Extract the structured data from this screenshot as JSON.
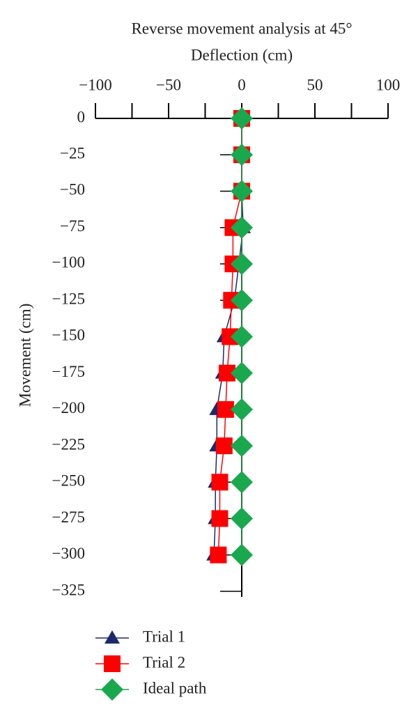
{
  "chart_data": {
    "type": "line",
    "title": "Reverse movement analysis at 45°",
    "x_label": "Deflection (cm)",
    "y_label": "Movement (cm)",
    "xlim": [
      -100,
      100
    ],
    "xticks": [
      {
        "value": -100,
        "label": "−100"
      },
      {
        "value": -50,
        "label": "−50"
      },
      0,
      50,
      100
    ],
    "xminorticks": [
      -75,
      -25,
      25,
      75
    ],
    "ylim": [
      -325,
      0
    ],
    "yticks": [
      0,
      {
        "value": -25,
        "label": "−25"
      },
      {
        "value": -50,
        "label": "−50"
      },
      {
        "value": -75,
        "label": "−75"
      },
      {
        "value": -100,
        "label": "−100"
      },
      {
        "value": -125,
        "label": "−125"
      },
      {
        "value": -150,
        "label": "−150"
      },
      {
        "value": -175,
        "label": "−175"
      },
      {
        "value": -200,
        "label": "−200"
      },
      {
        "value": -225,
        "label": "−225"
      },
      {
        "value": -250,
        "label": "−250"
      },
      {
        "value": -275,
        "label": "−275"
      },
      {
        "value": -300,
        "label": "−300"
      },
      {
        "value": -325,
        "label": "−325"
      }
    ],
    "y": [
      0,
      -25,
      -50,
      -75,
      -100,
      -125,
      -150,
      -175,
      -200,
      -225,
      -250,
      -275,
      -300
    ],
    "series": [
      {
        "name": "Trial 1",
        "color": "#1b2a6b",
        "marker": "triangle",
        "values": [
          0,
          0,
          0,
          1,
          -2,
          -5,
          -12,
          -13,
          -17,
          -17,
          -18,
          -18,
          -19
        ]
      },
      {
        "name": "Trial 2",
        "color": "#ff0000",
        "marker": "square",
        "values": [
          0,
          0,
          0,
          -6,
          -6,
          -7,
          -8,
          -10,
          -11,
          -12,
          -15,
          -15,
          -16
        ]
      },
      {
        "name": "Ideal path",
        "color": "#1aa84e",
        "marker": "diamond",
        "values": [
          0,
          0,
          0,
          0,
          0,
          0,
          0,
          0,
          0,
          0,
          0,
          0,
          0
        ]
      }
    ]
  }
}
